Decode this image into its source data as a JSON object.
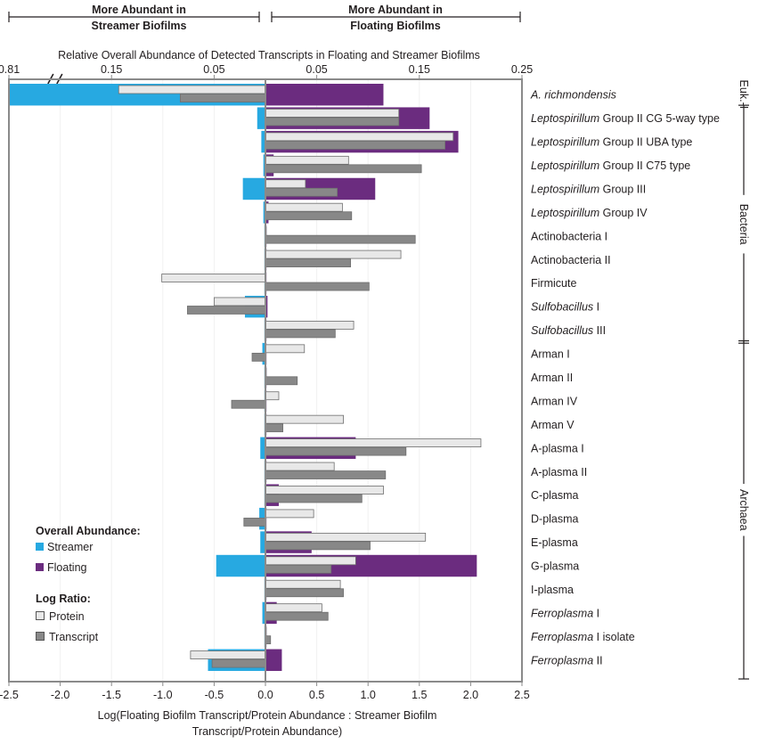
{
  "chart_data": {
    "type": "bar",
    "orientation": "horizontal",
    "header": {
      "left": [
        "More Abundant in",
        "Streamer Biofilms"
      ],
      "right": [
        "More Abundant in",
        "Floating Biofilms"
      ]
    },
    "top_axis": {
      "title": "Relative Overall Abundance of Detected Transcripts in Floating and Streamer Biofilms",
      "left_ticks": [
        {
          "label": "0.81",
          "value": 0.81
        },
        {
          "label": "0.15",
          "value": 0.15
        },
        {
          "label": "0.05",
          "value": 0.05
        }
      ],
      "right_ticks": [
        {
          "label": "0.05",
          "value": 0.05
        },
        {
          "label": "0.15",
          "value": 0.15
        },
        {
          "label": "0.25",
          "value": 0.25
        }
      ],
      "break_mark": "//"
    },
    "xlabel": "Log(Floating Biofilm Transcript/Protein Abundance : Streamer Biofilm Transcript/Protein Abundance)",
    "xlim": [
      -2.5,
      2.5
    ],
    "xticks": [
      -2.5,
      -2.0,
      -1.5,
      -1.0,
      -0.5,
      0.0,
      0.5,
      1.0,
      1.5,
      2.0,
      2.5
    ],
    "xtick_labels": [
      "-2.5",
      "-2.0",
      "-1.5",
      "-1.0",
      "-0.5",
      "0.0",
      "0.5",
      "1.0",
      "1.5",
      "2.0",
      "2.5"
    ],
    "legend": {
      "abundance_title": "Overall Abundance:",
      "streamer": "Streamer",
      "floating": "Floating",
      "ratio_title": "Log Ratio:",
      "protein": "Protein",
      "transcript": "Transcript"
    },
    "colors": {
      "streamer": "#27a9e1",
      "floating": "#6b2c7f",
      "protein": "#e8e8e8",
      "transcript": "#888888"
    },
    "groups": [
      {
        "label": "Euk.-I",
        "first": 0,
        "last": 0
      },
      {
        "label": "Bacteria",
        "first": 1,
        "last": 10
      },
      {
        "label": "Archaea",
        "first": 11,
        "last": 24
      }
    ],
    "organisms": [
      {
        "label": [
          {
            "t": "A. richmondensis",
            "i": true
          }
        ],
        "streamer": -2.5,
        "floating": 1.15,
        "protein": -1.43,
        "transcript": -0.83
      },
      {
        "label": [
          {
            "t": "Leptospirillum",
            "i": true
          },
          {
            "t": " Group II CG 5-way type",
            "i": false
          }
        ],
        "streamer": -0.08,
        "floating": 1.6,
        "protein": 1.3,
        "transcript": 1.3
      },
      {
        "label": [
          {
            "t": "Leptospirillum",
            "i": true
          },
          {
            "t": " Group II UBA type",
            "i": false
          }
        ],
        "streamer": -0.04,
        "floating": 1.88,
        "protein": 1.83,
        "transcript": 1.75
      },
      {
        "label": [
          {
            "t": "Leptospirillum",
            "i": true
          },
          {
            "t": " Group II C75 type",
            "i": false
          }
        ],
        "streamer": -0.02,
        "floating": 0.08,
        "protein": 0.81,
        "transcript": 1.52
      },
      {
        "label": [
          {
            "t": "Leptospirillum",
            "i": true
          },
          {
            "t": " Group III",
            "i": false
          }
        ],
        "streamer": -0.22,
        "floating": 1.07,
        "protein": 0.39,
        "transcript": 0.7
      },
      {
        "label": [
          {
            "t": "Leptospirillum",
            "i": true
          },
          {
            "t": " Group IV",
            "i": false
          }
        ],
        "streamer": -0.02,
        "floating": 0.03,
        "protein": 0.75,
        "transcript": 0.84
      },
      {
        "label": [
          {
            "t": "Actinobacteria I",
            "i": false
          }
        ],
        "streamer": -0.01,
        "floating": 0.01,
        "protein": 0.0,
        "transcript": 1.46
      },
      {
        "label": [
          {
            "t": "Actinobacteria II",
            "i": false
          }
        ],
        "streamer": -0.01,
        "floating": 0.01,
        "protein": 1.32,
        "transcript": 0.83
      },
      {
        "label": [
          {
            "t": "Firmicute",
            "i": false
          }
        ],
        "streamer": -0.01,
        "floating": 0.01,
        "protein": -1.01,
        "transcript": 1.01
      },
      {
        "label": [
          {
            "t": "Sulfobacillus",
            "i": true
          },
          {
            "t": " I",
            "i": false
          }
        ],
        "streamer": -0.2,
        "floating": 0.02,
        "protein": -0.5,
        "transcript": -0.76
      },
      {
        "label": [
          {
            "t": "Sulfobacillus",
            "i": true
          },
          {
            "t": " III",
            "i": false
          }
        ],
        "streamer": -0.01,
        "floating": 0.01,
        "protein": 0.86,
        "transcript": 0.68
      },
      {
        "label": [
          {
            "t": "Arman I",
            "i": false
          }
        ],
        "streamer": -0.03,
        "floating": 0.01,
        "protein": 0.38,
        "transcript": -0.13
      },
      {
        "label": [
          {
            "t": "Arman II",
            "i": false
          }
        ],
        "streamer": -0.01,
        "floating": 0.01,
        "protein": 0.0,
        "transcript": 0.31
      },
      {
        "label": [
          {
            "t": "Arman IV",
            "i": false
          }
        ],
        "streamer": -0.01,
        "floating": 0.01,
        "protein": 0.13,
        "transcript": -0.33
      },
      {
        "label": [
          {
            "t": "Arman V",
            "i": false
          }
        ],
        "streamer": -0.01,
        "floating": 0.01,
        "protein": 0.76,
        "transcript": 0.17
      },
      {
        "label": [
          {
            "t": "A-plasma I",
            "i": false
          }
        ],
        "streamer": -0.05,
        "floating": 0.88,
        "protein": 2.1,
        "transcript": 1.37
      },
      {
        "label": [
          {
            "t": "A-plasma II",
            "i": false
          }
        ],
        "streamer": -0.01,
        "floating": 0.01,
        "protein": 0.67,
        "transcript": 1.17
      },
      {
        "label": [
          {
            "t": "C-plasma",
            "i": false
          }
        ],
        "streamer": -0.01,
        "floating": 0.13,
        "protein": 1.15,
        "transcript": 0.94
      },
      {
        "label": [
          {
            "t": "D-plasma",
            "i": false
          }
        ],
        "streamer": -0.06,
        "floating": 0.01,
        "protein": 0.47,
        "transcript": -0.21
      },
      {
        "label": [
          {
            "t": "E-plasma",
            "i": false
          }
        ],
        "streamer": -0.05,
        "floating": 0.45,
        "protein": 1.56,
        "transcript": 1.02
      },
      {
        "label": [
          {
            "t": "G-plasma",
            "i": false
          }
        ],
        "streamer": -0.48,
        "floating": 2.06,
        "protein": 0.88,
        "transcript": 0.64
      },
      {
        "label": [
          {
            "t": "I-plasma",
            "i": false
          }
        ],
        "streamer": -0.01,
        "floating": 0.01,
        "protein": 0.73,
        "transcript": 0.76
      },
      {
        "label": [
          {
            "t": "Ferroplasma",
            "i": true
          },
          {
            "t": " I",
            "i": false
          }
        ],
        "streamer": -0.03,
        "floating": 0.11,
        "protein": 0.55,
        "transcript": 0.61
      },
      {
        "label": [
          {
            "t": "Ferroplasma",
            "i": true
          },
          {
            "t": " I isolate",
            "i": false
          }
        ],
        "streamer": -0.01,
        "floating": 0.01,
        "protein": 0.0,
        "transcript": 0.05
      },
      {
        "label": [
          {
            "t": "Ferroplasma",
            "i": true
          },
          {
            "t": " II",
            "i": false
          }
        ],
        "streamer": -0.56,
        "floating": 0.16,
        "protein": -0.73,
        "transcript": -0.52
      }
    ]
  }
}
